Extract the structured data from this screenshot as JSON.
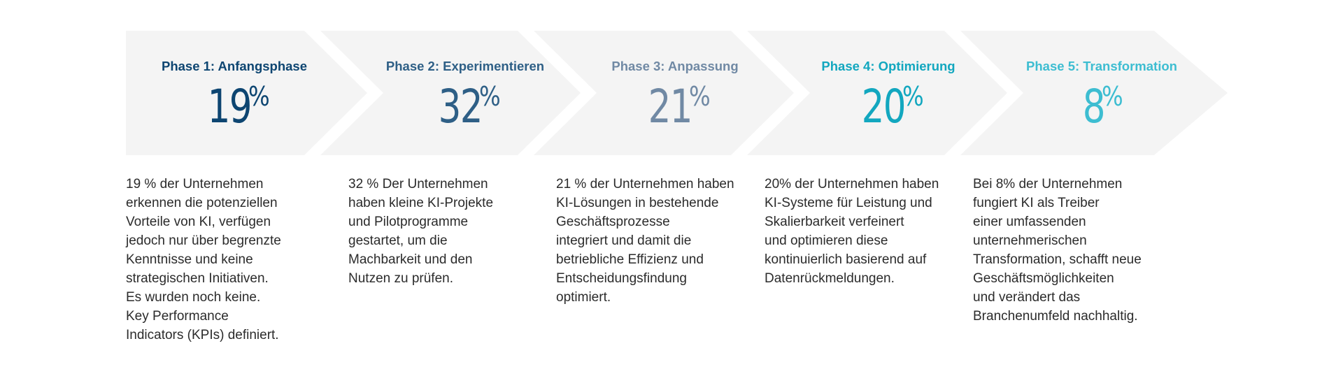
{
  "phases": [
    {
      "title": "Phase 1: Anfangsphase",
      "value": "19",
      "unit": "%",
      "color": "#0d4571",
      "description": "19 % der Unternehmen\nerkennen die potenziellen\nVorteile von KI, verfügen\njedoch nur über begrenzte\nKenntnisse und keine\nstrategischen Initiativen.\nEs wurden noch keine.\nKey Performance\nIndicators (KPIs) definiert."
    },
    {
      "title": "Phase 2: Experimentieren",
      "value": "32",
      "unit": "%",
      "color": "#2e5f86",
      "description": "32 % Der Unternehmen\nhaben kleine KI-Projekte\nund Pilotprogramme\ngestartet, um die\nMachbarkeit und den\nNutzen zu prüfen."
    },
    {
      "title": "Phase 3: Anpassung",
      "value": "21",
      "unit": "%",
      "color": "#7089a4",
      "description": "21 % der Unternehmen haben\nKI-Lösungen in bestehende\nGeschäftsprozesse\nintegriert und damit die\nbetriebliche Effizienz und\nEntscheidungsfindung\noptimiert."
    },
    {
      "title": "Phase 4: Optimierung",
      "value": "20",
      "unit": "%",
      "color": "#12a7bf",
      "description": "20% der Unternehmen haben\nKI-Systeme für Leistung und\nSkalierbarkeit verfeinert\nund optimieren diese\nkontinuierlich basierend auf\nDatenrückmeldungen."
    },
    {
      "title": "Phase 5: Transformation",
      "value": "8",
      "unit": "%",
      "color": "#3dbdd1",
      "description": "Bei 8% der Unternehmen\nfungiert KI als Treiber\neiner umfassenden\nunternehmerischen\nTransformation, schafft neue\nGeschäftsmöglichkeiten\nund verändert das\nBranchenumfeld nachhaltig."
    }
  ]
}
